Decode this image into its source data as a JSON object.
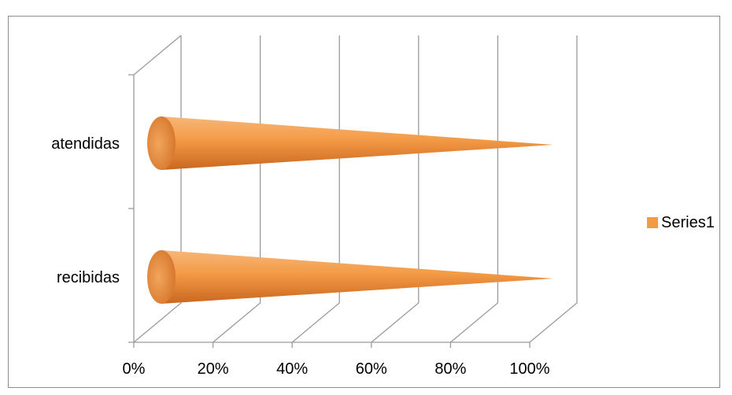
{
  "chart_data": {
    "type": "bar",
    "orientation": "horizontal",
    "style": "3d-cone",
    "categories": [
      "atendidas",
      "recibidas"
    ],
    "series": [
      {
        "name": "Series1",
        "values": [
          100,
          100
        ]
      }
    ],
    "xlim": [
      0,
      100
    ],
    "x_ticks": [
      "0%",
      "20%",
      "40%",
      "60%",
      "80%",
      "100%"
    ],
    "grid": true,
    "legend_position": "right",
    "colors": {
      "series1": "#f39a45",
      "series1_dark": "#c0601b",
      "grid": "#9a9a9a"
    }
  }
}
